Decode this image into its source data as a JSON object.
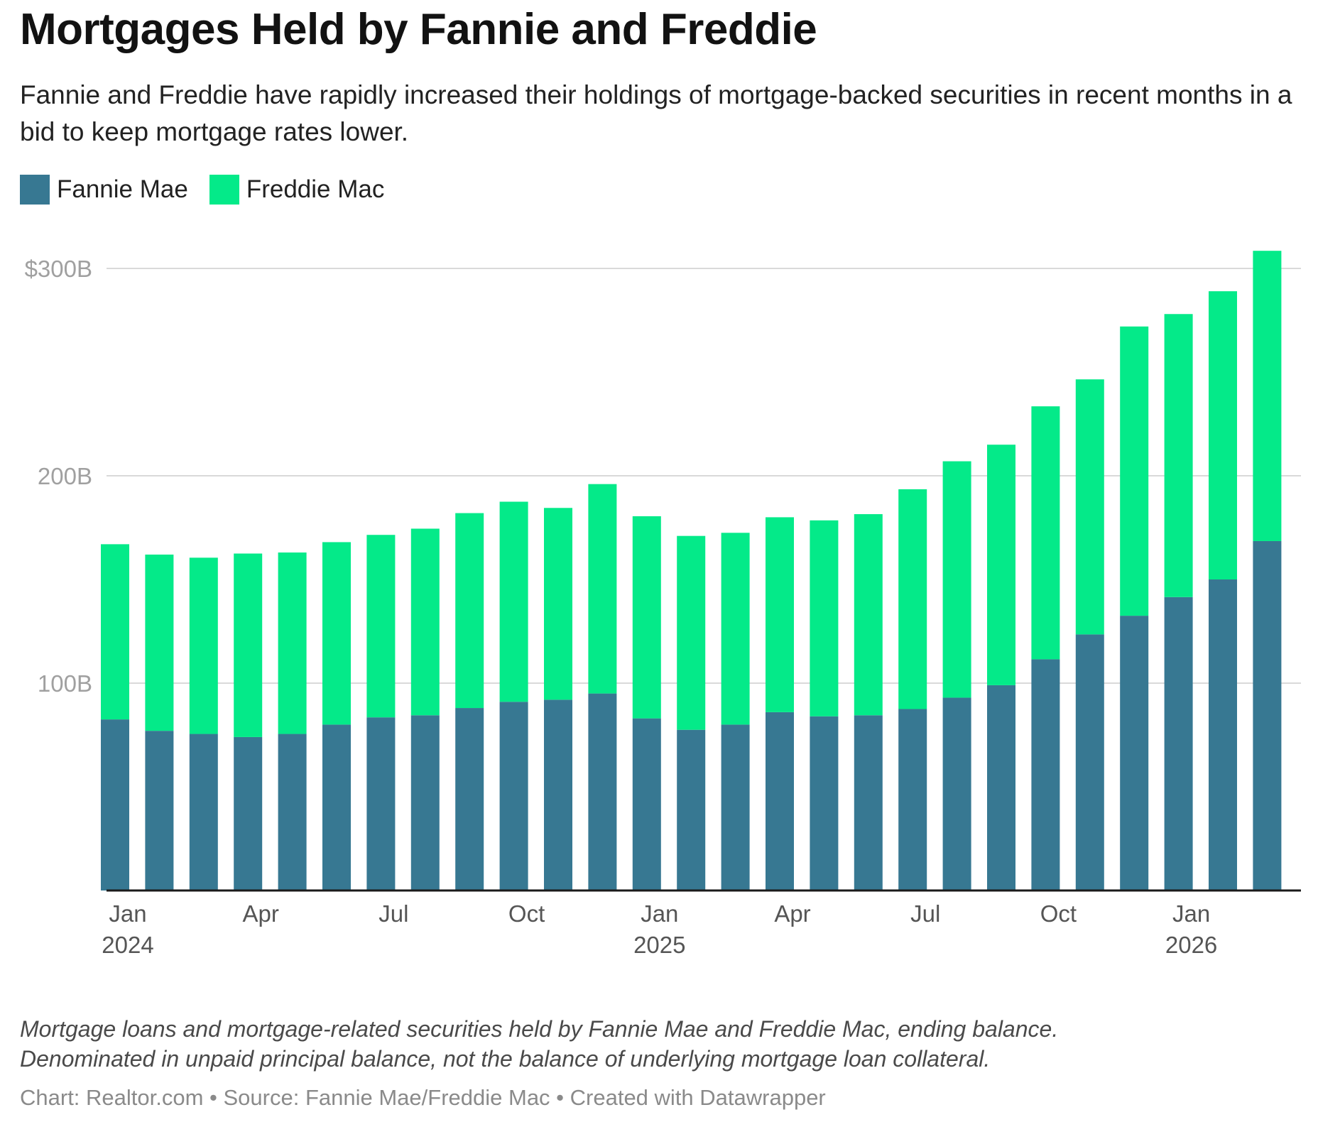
{
  "header": {
    "title": "Mortgages Held by Fannie and Freddie",
    "subtitle": "Fannie and Freddie have rapidly increased their holdings of mortgage-backed securities in recent months in a bid to keep mortgage rates lower."
  },
  "legend": {
    "items": [
      {
        "label": "Fannie Mae",
        "color": "#377892"
      },
      {
        "label": "Freddie Mac",
        "color": "#04ea89"
      }
    ]
  },
  "footer": {
    "note_line1": "Mortgage loans and mortgage-related securities held by Fannie Mae and Freddie Mac, ending balance.",
    "note_line2": "Denominated in unpaid principal balance, not the balance of underlying mortgage loan collateral.",
    "credit": "Chart: Realtor.com • Source: Fannie Mae/Freddie Mac • Created with Datawrapper"
  },
  "chart_data": {
    "type": "bar",
    "stacked": true,
    "title": "Mortgages Held by Fannie and Freddie",
    "ylim": [
      0,
      300
    ],
    "y_ticks": [
      {
        "value": 100,
        "label": "100B"
      },
      {
        "value": 200,
        "label": "200B"
      },
      {
        "value": 300,
        "label": "$300B"
      }
    ],
    "x_ticks": [
      {
        "index": 0,
        "month": "Jan",
        "year": "2024"
      },
      {
        "index": 3,
        "month": "Apr",
        "year": ""
      },
      {
        "index": 6,
        "month": "Jul",
        "year": ""
      },
      {
        "index": 9,
        "month": "Oct",
        "year": ""
      },
      {
        "index": 12,
        "month": "Jan",
        "year": "2025"
      },
      {
        "index": 15,
        "month": "Apr",
        "year": ""
      },
      {
        "index": 18,
        "month": "Jul",
        "year": ""
      },
      {
        "index": 21,
        "month": "Oct",
        "year": ""
      },
      {
        "index": 24,
        "month": "Jan",
        "year": "2026"
      }
    ],
    "categories": [
      "2024-01",
      "2024-02",
      "2024-03",
      "2024-04",
      "2024-05",
      "2024-06",
      "2024-07",
      "2024-08",
      "2024-09",
      "2024-10",
      "2024-11",
      "2024-12",
      "2025-01",
      "2025-02",
      "2025-03",
      "2025-04",
      "2025-05",
      "2025-06",
      "2025-07",
      "2025-08",
      "2025-09",
      "2025-10",
      "2025-11",
      "2025-12",
      "2026-01",
      "2026-02",
      "2026-03"
    ],
    "series": [
      {
        "name": "Fannie Mae",
        "color": "#377892",
        "values": [
          82.5,
          77,
          75.5,
          74,
          75.5,
          80,
          83.5,
          84.5,
          88,
          91,
          92,
          95,
          83,
          77.5,
          80,
          86,
          84,
          84.5,
          87.5,
          93,
          99,
          111.5,
          123.5,
          132.5,
          141.5,
          150,
          168.5
        ]
      },
      {
        "name": "Freddie Mac",
        "color": "#04ea89",
        "values": [
          84.5,
          85,
          85,
          88.5,
          87.5,
          88,
          88,
          90,
          94,
          96.5,
          92.5,
          101,
          97.5,
          93.5,
          92.5,
          94,
          94.5,
          97,
          106,
          114,
          116,
          122,
          123,
          139.5,
          136.5,
          139,
          140
        ]
      }
    ],
    "grid": true,
    "legend_position": "top-left"
  }
}
